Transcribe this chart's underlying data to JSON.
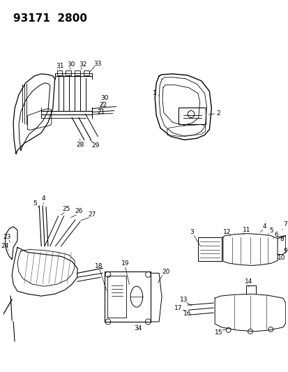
{
  "title": "93171  2800",
  "bg_color": "#ffffff",
  "line_color": "#000000",
  "fig_width": 4.14,
  "fig_height": 5.33,
  "dpi": 100
}
